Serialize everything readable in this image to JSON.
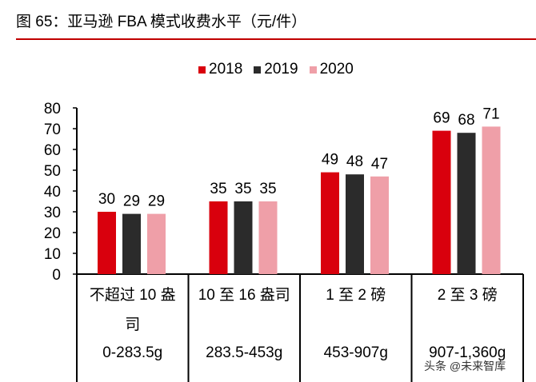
{
  "title": "图 65：亚马逊 FBA 模式收费水平（元/件）",
  "watermark": "头条 @未来智库",
  "colors": {
    "2018": "#d9000d",
    "2019": "#2b2b2b",
    "2020": "#ef9fa8",
    "rule": "#c00000"
  },
  "chart_data": {
    "type": "bar",
    "ylim": [
      0,
      80
    ],
    "yticks": [
      "0",
      "10",
      "20",
      "30",
      "40",
      "50",
      "60",
      "70",
      "80"
    ],
    "categories": [
      "不超过 10 盎司",
      "10 至 16 盎司",
      "1 至 2 磅",
      "2 至 3 磅"
    ],
    "subcategories": [
      "0-283.5g",
      "283.5-453g",
      "453-907g",
      "907-1,360g"
    ],
    "legend_position": "top",
    "grid": false,
    "series": [
      {
        "name": "2018",
        "values": [
          30,
          35,
          49,
          69
        ]
      },
      {
        "name": "2019",
        "values": [
          29,
          35,
          48,
          68
        ]
      },
      {
        "name": "2020",
        "values": [
          29,
          35,
          47,
          71
        ]
      }
    ]
  }
}
